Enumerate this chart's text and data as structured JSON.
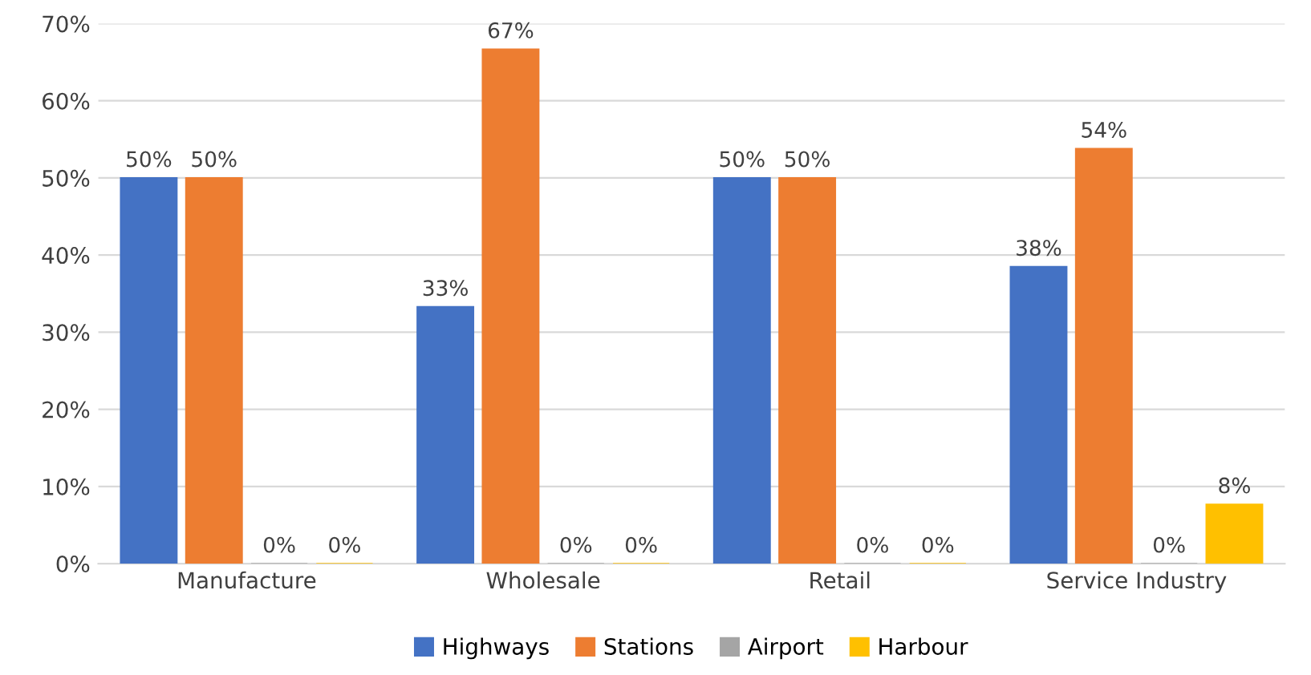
{
  "chart_data": {
    "type": "bar",
    "categories": [
      "Manufacture",
      "Wholesale",
      "Retail",
      "Service Industry"
    ],
    "series": [
      {
        "name": "Highways",
        "color": "#4472c4",
        "values": [
          50,
          33.3,
          50,
          38.5
        ],
        "value_labels": [
          "50%",
          "33%",
          "50%",
          "38%"
        ]
      },
      {
        "name": "Stations",
        "color": "#ed7d31",
        "values": [
          50,
          66.7,
          50,
          53.8
        ],
        "value_labels": [
          "50%",
          "67%",
          "50%",
          "54%"
        ]
      },
      {
        "name": "Airport",
        "color": "#a5a5a5",
        "values": [
          0,
          0,
          0,
          0
        ],
        "value_labels": [
          "0%",
          "0%",
          "0%",
          "0%"
        ]
      },
      {
        "name": "Harbour",
        "color": "#ffc000",
        "values": [
          0,
          0,
          0,
          7.7
        ],
        "value_labels": [
          "0%",
          "0%",
          "0%",
          "8%"
        ]
      }
    ],
    "ylim": [
      0,
      70
    ],
    "yticks": [
      {
        "value": 0,
        "label": "0%"
      },
      {
        "value": 10,
        "label": "10%"
      },
      {
        "value": 20,
        "label": "20%"
      },
      {
        "value": 30,
        "label": "30%"
      },
      {
        "value": 40,
        "label": "40%"
      },
      {
        "value": 50,
        "label": "50%"
      },
      {
        "value": 60,
        "label": "60%"
      },
      {
        "value": 70,
        "label": "70%"
      }
    ],
    "grid": "y",
    "legend": "bottom"
  }
}
